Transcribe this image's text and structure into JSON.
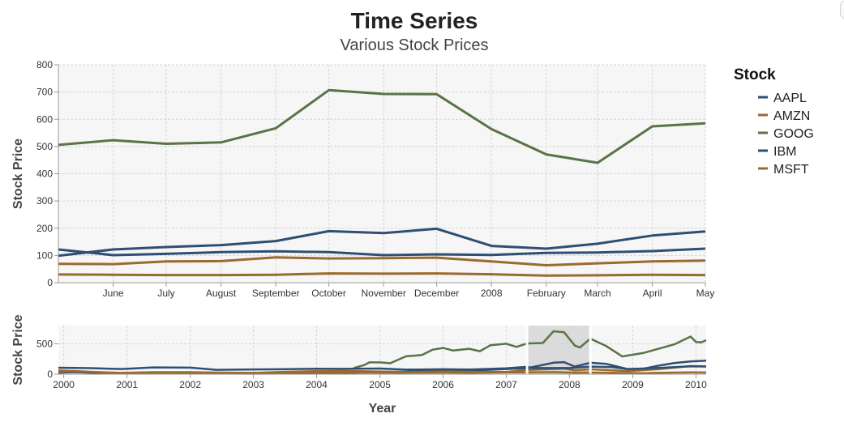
{
  "chart_data": {
    "type": "line",
    "title": "Time Series",
    "subtitle": "Various Stock Prices",
    "legend_title": "Stock",
    "legend_position": "right",
    "grid": true,
    "colors": {
      "AAPL": "#2e4f73",
      "AMZN": "#9a6a2f",
      "GOOG": "#5a7347",
      "IBM": "#2e4f73",
      "MSFT": "#9a6a2f",
      "brush": "#d6d6d6",
      "grid": "#d6d6d6",
      "plot_bg": "#f6f6f6"
    },
    "focus": {
      "ylabel": "Stock Price",
      "ylim": [
        0,
        800
      ],
      "yticks": [
        0,
        100,
        200,
        300,
        400,
        500,
        600,
        700,
        800
      ],
      "x_range": [
        "2007-05-01",
        "2008-05-01"
      ],
      "xticks": [
        {
          "date": "2007-06-01",
          "label": "June"
        },
        {
          "date": "2007-07-01",
          "label": "July"
        },
        {
          "date": "2007-08-01",
          "label": "August"
        },
        {
          "date": "2007-09-01",
          "label": "September"
        },
        {
          "date": "2007-10-01",
          "label": "October"
        },
        {
          "date": "2007-11-01",
          "label": "November"
        },
        {
          "date": "2007-12-01",
          "label": "December"
        },
        {
          "date": "2008-01-01",
          "label": "2008"
        },
        {
          "date": "2008-02-01",
          "label": "February"
        },
        {
          "date": "2008-03-01",
          "label": "March"
        },
        {
          "date": "2008-04-01",
          "label": "April"
        },
        {
          "date": "2008-05-01",
          "label": "May"
        }
      ],
      "dates": [
        "2007-05-01",
        "2007-06-01",
        "2007-07-01",
        "2007-08-01",
        "2007-09-01",
        "2007-10-01",
        "2007-11-01",
        "2007-12-01",
        "2008-01-01",
        "2008-02-01",
        "2008-03-01",
        "2008-04-01",
        "2008-05-01"
      ],
      "series": [
        {
          "name": "AAPL",
          "values": [
            99,
            122,
            131,
            138,
            153,
            189,
            182,
            198,
            135,
            125,
            143,
            173,
            188
          ]
        },
        {
          "name": "AMZN",
          "values": [
            69,
            68,
            78,
            79,
            93,
            89,
            90,
            92,
            78,
            64,
            71,
            78,
            81
          ]
        },
        {
          "name": "GOOG",
          "values": [
            506,
            523,
            510,
            515,
            567,
            707,
            693,
            692,
            564,
            471,
            440,
            574,
            585
          ]
        },
        {
          "name": "IBM",
          "values": [
            122,
            101,
            106,
            112,
            115,
            112,
            101,
            104,
            102,
            109,
            111,
            116,
            125
          ]
        },
        {
          "name": "MSFT",
          "values": [
            30,
            29,
            28,
            28,
            29,
            34,
            33,
            34,
            31,
            26,
            27,
            29,
            28
          ]
        }
      ]
    },
    "context": {
      "ylabel": "Stock Price",
      "xlabel": "Year",
      "ylim": [
        0,
        800
      ],
      "yticks": [
        0,
        500
      ],
      "x_range": [
        "1999-12-01",
        "2010-03-01"
      ],
      "xticks": [
        {
          "date": "2000-01-01",
          "label": "2000"
        },
        {
          "date": "2001-01-01",
          "label": "2001"
        },
        {
          "date": "2002-01-01",
          "label": "2002"
        },
        {
          "date": "2003-01-01",
          "label": "2003"
        },
        {
          "date": "2004-01-01",
          "label": "2004"
        },
        {
          "date": "2005-01-01",
          "label": "2005"
        },
        {
          "date": "2006-01-01",
          "label": "2006"
        },
        {
          "date": "2007-01-01",
          "label": "2007"
        },
        {
          "date": "2008-01-01",
          "label": "2008"
        },
        {
          "date": "2009-01-01",
          "label": "2009"
        },
        {
          "date": "2010-01-01",
          "label": "2010"
        }
      ],
      "brush_range": [
        "2007-05-01",
        "2008-05-01"
      ],
      "series": [
        {
          "name": "AAPL",
          "points": [
            [
              "1999-12-01",
              26
            ],
            [
              "2000-03-01",
              34
            ],
            [
              "2000-06-01",
              26
            ],
            [
              "2000-09-01",
              14
            ],
            [
              "2001-01-01",
              10
            ],
            [
              "2001-06-01",
              11
            ],
            [
              "2002-01-01",
              12
            ],
            [
              "2002-06-01",
              9
            ],
            [
              "2003-01-01",
              8
            ],
            [
              "2003-06-01",
              11
            ],
            [
              "2004-01-01",
              12
            ],
            [
              "2004-06-01",
              17
            ],
            [
              "2005-01-01",
              40
            ],
            [
              "2005-06-01",
              42
            ],
            [
              "2006-01-01",
              76
            ],
            [
              "2006-06-01",
              58
            ],
            [
              "2007-01-01",
              86
            ],
            [
              "2007-05-01",
              99
            ],
            [
              "2007-10-01",
              189
            ],
            [
              "2007-12-01",
              198
            ],
            [
              "2008-02-01",
              125
            ],
            [
              "2008-05-01",
              188
            ],
            [
              "2008-08-01",
              170
            ],
            [
              "2008-12-01",
              86
            ],
            [
              "2009-03-01",
              90
            ],
            [
              "2009-06-01",
              142
            ],
            [
              "2009-09-01",
              185
            ],
            [
              "2009-12-01",
              210
            ],
            [
              "2010-03-01",
              224
            ]
          ]
        },
        {
          "name": "AMZN",
          "points": [
            [
              "1999-12-01",
              64
            ],
            [
              "2000-06-01",
              36
            ],
            [
              "2000-12-01",
              16
            ],
            [
              "2001-06-01",
              15
            ],
            [
              "2002-01-01",
              10
            ],
            [
              "2002-06-01",
              16
            ],
            [
              "2003-01-01",
              20
            ],
            [
              "2003-06-01",
              36
            ],
            [
              "2004-01-01",
              52
            ],
            [
              "2004-06-01",
              54
            ],
            [
              "2005-01-01",
              44
            ],
            [
              "2005-06-01",
              33
            ],
            [
              "2006-01-01",
              45
            ],
            [
              "2006-06-01",
              38
            ],
            [
              "2007-01-01",
              37
            ],
            [
              "2007-05-01",
              69
            ],
            [
              "2007-12-01",
              92
            ],
            [
              "2008-02-01",
              64
            ],
            [
              "2008-05-01",
              81
            ],
            [
              "2008-12-01",
              51
            ],
            [
              "2009-06-01",
              83
            ],
            [
              "2009-12-01",
              134
            ],
            [
              "2010-03-01",
              128
            ]
          ]
        },
        {
          "name": "GOOG",
          "points": [
            [
              "2004-08-01",
              102
            ],
            [
              "2004-10-01",
              150
            ],
            [
              "2004-11-01",
              195
            ],
            [
              "2005-01-01",
              195
            ],
            [
              "2005-03-01",
              180
            ],
            [
              "2005-06-01",
              294
            ],
            [
              "2005-09-01",
              316
            ],
            [
              "2005-11-01",
              404
            ],
            [
              "2006-01-01",
              432
            ],
            [
              "2006-03-01",
              390
            ],
            [
              "2006-06-01",
              419
            ],
            [
              "2006-08-01",
              378
            ],
            [
              "2006-10-01",
              476
            ],
            [
              "2007-01-01",
              501
            ],
            [
              "2007-03-01",
              449
            ],
            [
              "2007-05-01",
              506
            ],
            [
              "2007-08-01",
              515
            ],
            [
              "2007-10-01",
              707
            ],
            [
              "2007-12-01",
              692
            ],
            [
              "2008-02-01",
              471
            ],
            [
              "2008-03-01",
              440
            ],
            [
              "2008-05-01",
              585
            ],
            [
              "2008-08-01",
              463
            ],
            [
              "2008-11-01",
              292
            ],
            [
              "2008-12-01",
              307
            ],
            [
              "2009-03-01",
              348
            ],
            [
              "2009-06-01",
              421
            ],
            [
              "2009-09-01",
              495
            ],
            [
              "2009-12-01",
              620
            ],
            [
              "2010-01-01",
              529
            ],
            [
              "2010-02-01",
              526
            ],
            [
              "2010-03-01",
              560
            ]
          ]
        },
        {
          "name": "IBM",
          "points": [
            [
              "1999-12-01",
              107
            ],
            [
              "2000-06-01",
              100
            ],
            [
              "2000-12-01",
              85
            ],
            [
              "2001-06-01",
              112
            ],
            [
              "2002-01-01",
              108
            ],
            [
              "2002-06-01",
              72
            ],
            [
              "2002-09-01",
              75
            ],
            [
              "2003-01-01",
              78
            ],
            [
              "2003-06-01",
              82
            ],
            [
              "2004-01-01",
              91
            ],
            [
              "2004-06-01",
              88
            ],
            [
              "2005-01-01",
              93
            ],
            [
              "2005-06-01",
              74
            ],
            [
              "2006-01-01",
              82
            ],
            [
              "2006-06-01",
              76
            ],
            [
              "2007-01-01",
              97
            ],
            [
              "2007-05-01",
              122
            ],
            [
              "2007-06-01",
              101
            ],
            [
              "2008-01-01",
              102
            ],
            [
              "2008-05-01",
              125
            ],
            [
              "2008-09-01",
              117
            ],
            [
              "2008-12-01",
              84
            ],
            [
              "2009-06-01",
              104
            ],
            [
              "2009-12-01",
              130
            ],
            [
              "2010-03-01",
              127
            ]
          ]
        },
        {
          "name": "MSFT",
          "points": [
            [
              "1999-12-01",
              39
            ],
            [
              "2000-03-01",
              53
            ],
            [
              "2000-06-01",
              40
            ],
            [
              "2000-12-01",
              21
            ],
            [
              "2001-06-01",
              33
            ],
            [
              "2002-01-01",
              33
            ],
            [
              "2002-06-01",
              27
            ],
            [
              "2003-01-01",
              22
            ],
            [
              "2003-06-01",
              25
            ],
            [
              "2004-01-01",
              27
            ],
            [
              "2004-06-01",
              28
            ],
            [
              "2005-01-01",
              26
            ],
            [
              "2005-06-01",
              24
            ],
            [
              "2006-01-01",
              27
            ],
            [
              "2006-06-01",
              23
            ],
            [
              "2007-01-01",
              30
            ],
            [
              "2007-05-01",
              30
            ],
            [
              "2007-10-01",
              34
            ],
            [
              "2008-02-01",
              26
            ],
            [
              "2008-05-01",
              28
            ],
            [
              "2008-12-01",
              19
            ],
            [
              "2009-03-01",
              16
            ],
            [
              "2009-06-01",
              23
            ],
            [
              "2009-12-01",
              30
            ],
            [
              "2010-03-01",
              28
            ]
          ]
        }
      ]
    }
  }
}
